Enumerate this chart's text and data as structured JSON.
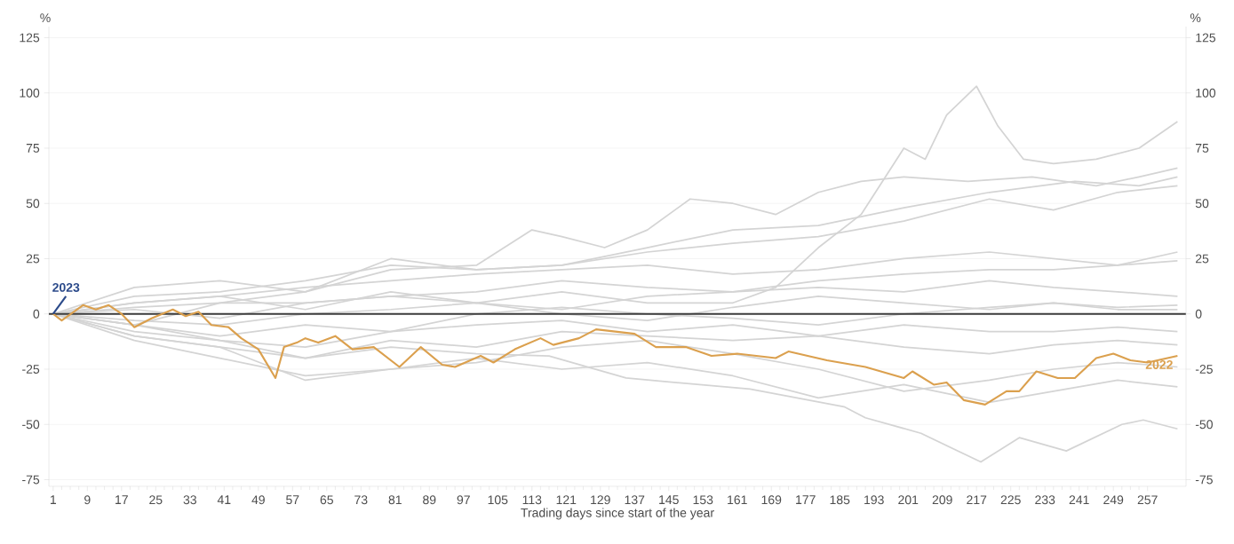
{
  "chart_data": {
    "type": "line",
    "xlabel": "Trading days since start of the year",
    "ylabel": "%",
    "y2label": "%",
    "xlim": [
      0,
      266
    ],
    "ylim": [
      -78,
      130
    ],
    "y2lim": [
      -78,
      130
    ],
    "xticks": [
      1,
      9,
      17,
      25,
      33,
      41,
      49,
      57,
      65,
      73,
      81,
      89,
      97,
      105,
      113,
      121,
      129,
      137,
      145,
      153,
      161,
      169,
      177,
      185,
      193,
      201,
      209,
      217,
      225,
      233,
      241,
      249,
      257
    ],
    "yticks": [
      -75,
      -50,
      -25,
      0,
      25,
      50,
      75,
      100,
      125
    ],
    "y2ticks": [
      -75,
      -50,
      -25,
      0,
      25,
      50,
      75,
      100,
      125
    ],
    "grid": "y",
    "ref_lines": [
      {
        "axis": "y",
        "value": 0,
        "color": "#3c3c3c"
      }
    ],
    "series": [
      {
        "color": "#d4d4d4",
        "x": [
          1,
          20,
          40,
          60,
          80,
          100,
          120,
          140,
          160,
          170,
          180,
          190,
          200,
          205,
          210,
          217,
          222,
          228,
          235,
          245,
          255,
          264
        ],
        "values": [
          0,
          5,
          8,
          2,
          10,
          5,
          10,
          5,
          5,
          12,
          30,
          45,
          75,
          70,
          90,
          103,
          85,
          70,
          68,
          70,
          75,
          87
        ]
      },
      {
        "color": "#d4d4d4",
        "x": [
          1,
          20,
          40,
          60,
          80,
          100,
          113,
          120,
          130,
          140,
          150,
          160,
          170,
          180,
          190,
          200,
          215,
          230,
          245,
          255,
          264
        ],
        "values": [
          0,
          12,
          15,
          10,
          20,
          22,
          38,
          35,
          30,
          38,
          52,
          50,
          45,
          55,
          60,
          62,
          60,
          62,
          58,
          62,
          66
        ]
      },
      {
        "color": "#d4d4d4",
        "x": [
          1,
          20,
          40,
          60,
          80,
          100,
          120,
          140,
          160,
          180,
          200,
          220,
          240,
          255,
          264
        ],
        "values": [
          0,
          -5,
          5,
          10,
          25,
          20,
          22,
          30,
          38,
          40,
          48,
          55,
          60,
          58,
          62
        ]
      },
      {
        "color": "#d4d4d4",
        "x": [
          1,
          20,
          40,
          60,
          80,
          100,
          120,
          140,
          160,
          180,
          200,
          220,
          235,
          250,
          264
        ],
        "values": [
          0,
          8,
          10,
          15,
          22,
          20,
          22,
          28,
          32,
          35,
          42,
          52,
          47,
          55,
          58
        ]
      },
      {
        "color": "#d4d4d4",
        "x": [
          1,
          20,
          40,
          60,
          80,
          100,
          120,
          140,
          160,
          180,
          200,
          220,
          235,
          250,
          264
        ],
        "values": [
          0,
          5,
          8,
          12,
          15,
          18,
          20,
          22,
          18,
          20,
          25,
          28,
          25,
          22,
          28
        ]
      },
      {
        "color": "#d4d4d4",
        "x": [
          1,
          20,
          40,
          60,
          80,
          100,
          120,
          140,
          160,
          180,
          200,
          220,
          235,
          250,
          264
        ],
        "values": [
          0,
          3,
          5,
          5,
          8,
          10,
          15,
          12,
          10,
          15,
          18,
          20,
          20,
          22,
          24
        ]
      },
      {
        "color": "#d4d4d4",
        "x": [
          1,
          20,
          40,
          60,
          80,
          100,
          120,
          140,
          160,
          180,
          200,
          220,
          235,
          250,
          264
        ],
        "values": [
          0,
          2,
          -2,
          5,
          8,
          5,
          2,
          8,
          10,
          12,
          10,
          15,
          12,
          10,
          8
        ]
      },
      {
        "color": "#d4d4d4",
        "x": [
          1,
          20,
          40,
          60,
          80,
          100,
          120,
          140,
          160,
          180,
          200,
          220,
          235,
          250,
          264
        ],
        "values": [
          0,
          -3,
          -5,
          0,
          2,
          5,
          0,
          -3,
          3,
          8,
          5,
          2,
          5,
          3,
          4
        ]
      },
      {
        "color": "#d4d4d4",
        "x": [
          1,
          20,
          40,
          60,
          80,
          100,
          120,
          140,
          160,
          180,
          200,
          220,
          235,
          250,
          264
        ],
        "values": [
          0,
          -5,
          -10,
          -5,
          -8,
          0,
          3,
          0,
          -2,
          -5,
          0,
          3,
          5,
          2,
          2
        ]
      },
      {
        "color": "#d4d4d4",
        "x": [
          1,
          20,
          40,
          60,
          80,
          100,
          120,
          140,
          160,
          180,
          200,
          220,
          235,
          250,
          264
        ],
        "values": [
          0,
          -8,
          -12,
          -15,
          -8,
          -5,
          -3,
          -8,
          -5,
          -10,
          -5,
          -8,
          -8,
          -6,
          -8
        ]
      },
      {
        "color": "#d4d4d4",
        "x": [
          1,
          20,
          40,
          60,
          80,
          100,
          120,
          140,
          160,
          180,
          200,
          220,
          235,
          250,
          264
        ],
        "values": [
          0,
          -10,
          -15,
          -20,
          -12,
          -15,
          -8,
          -10,
          -12,
          -10,
          -15,
          -18,
          -14,
          -12,
          -14
        ]
      },
      {
        "color": "#d4d4d4",
        "x": [
          1,
          20,
          40,
          60,
          80,
          100,
          120,
          140,
          160,
          180,
          200,
          220,
          235,
          250,
          264
        ],
        "values": [
          0,
          -12,
          -20,
          -28,
          -25,
          -22,
          -15,
          -12,
          -18,
          -25,
          -35,
          -30,
          -25,
          -22,
          -24
        ]
      },
      {
        "color": "#d4d4d4",
        "x": [
          1,
          20,
          40,
          60,
          80,
          100,
          120,
          140,
          160,
          180,
          200,
          220,
          235,
          250,
          264
        ],
        "values": [
          0,
          -10,
          -15,
          -30,
          -25,
          -20,
          -25,
          -22,
          -28,
          -38,
          -32,
          -40,
          -35,
          -30,
          -33
        ]
      },
      {
        "color": "#d4d4d4",
        "x": [
          1,
          20,
          40,
          60,
          80,
          100,
          117,
          135,
          164,
          186,
          191,
          204,
          218,
          227,
          238,
          251,
          256,
          264
        ],
        "values": [
          0,
          -5,
          -12,
          -20,
          -15,
          -18,
          -19,
          -29,
          -34,
          -42,
          -47,
          -54,
          -67,
          -56,
          -62,
          -50,
          -48,
          -52
        ]
      },
      {
        "name": "2022",
        "color": "#dba04e",
        "x": [
          1,
          3,
          8,
          11,
          14,
          17,
          20,
          24,
          29,
          32,
          35,
          38,
          42,
          45,
          49,
          53,
          55,
          58,
          60,
          63,
          67,
          71,
          76,
          82,
          87,
          92,
          95,
          101,
          104,
          109,
          115,
          118,
          124,
          128,
          137,
          142,
          149,
          155,
          161,
          170,
          173,
          182,
          188,
          191,
          200,
          202,
          207,
          210,
          214,
          219,
          224,
          227,
          231,
          236,
          240,
          245,
          249,
          253,
          257,
          264
        ],
        "values": [
          0,
          -3,
          4,
          2,
          4,
          0,
          -6,
          -2,
          2,
          -1,
          1,
          -5,
          -6,
          -11,
          -16,
          -29,
          -15,
          -13,
          -11,
          -13,
          -10,
          -16,
          -15,
          -24,
          -15,
          -23,
          -24,
          -19,
          -22,
          -16,
          -11,
          -14,
          -11,
          -7,
          -9,
          -15,
          -15,
          -19,
          -18,
          -20,
          -17,
          -21,
          -23,
          -24,
          -29,
          -26,
          -32,
          -31,
          -39,
          -41,
          -35,
          -35,
          -26,
          -29,
          -29,
          -20,
          -18,
          -21,
          -22,
          -19
        ]
      },
      {
        "name": "2023",
        "color": "#2b4a8a",
        "x": [
          1,
          4
        ],
        "values": [
          0,
          8
        ]
      }
    ]
  }
}
